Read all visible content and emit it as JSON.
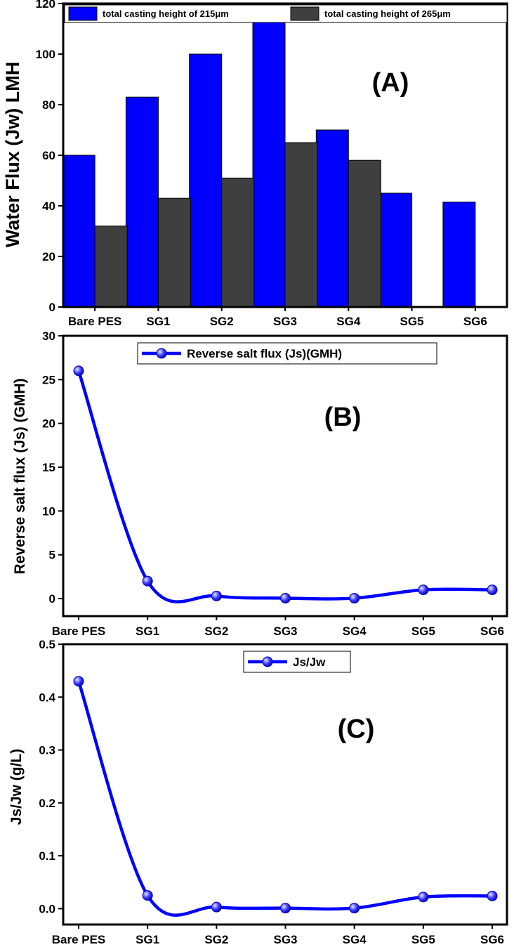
{
  "chart_data": [
    {
      "type": "bar",
      "panel_label": "(A)",
      "categories": [
        "Bare PES",
        "SG1",
        "SG2",
        "SG3",
        "SG4",
        "SG5",
        "SG6"
      ],
      "series": [
        {
          "name": "total casting height of 215μm",
          "color": "#0000ff",
          "values": [
            60,
            83,
            100,
            115,
            70,
            45,
            41.5
          ]
        },
        {
          "name": "total casting height of 265μm",
          "color": "#3f3f3f",
          "values": [
            32,
            43,
            51,
            65,
            58,
            null,
            null
          ]
        }
      ],
      "ylabel": "Water Flux (Jw) LMH",
      "ylim": [
        0,
        120
      ],
      "yticks": [
        0,
        20,
        40,
        60,
        80,
        100,
        120
      ],
      "legend": "top"
    },
    {
      "type": "line",
      "panel_label": "(B)",
      "categories": [
        "Bare PES",
        "SG1",
        "SG2",
        "SG3",
        "SG4",
        "SG5",
        "SG6"
      ],
      "series": [
        {
          "name": "Reverse salt flux (Js)(GMH)",
          "color": "#0000ff",
          "values": [
            26,
            2,
            0.3,
            0.05,
            0.05,
            1,
            1
          ]
        }
      ],
      "ylabel": "Reverse salt flux (Js) (GMH)",
      "ylim": [
        -2,
        30
      ],
      "yticks": [
        0,
        5,
        10,
        15,
        20,
        25,
        30
      ],
      "legend": "top"
    },
    {
      "type": "line",
      "panel_label": "(C)",
      "categories": [
        "Bare PES",
        "SG1",
        "SG2",
        "SG3",
        "SG4",
        "SG5",
        "SG6"
      ],
      "series": [
        {
          "name": "Js/Jw",
          "color": "#0000ff",
          "values": [
            0.43,
            0.025,
            0.003,
            0.001,
            0.001,
            0.022,
            0.024
          ]
        }
      ],
      "ylabel": "Js/Jw (g/L)",
      "ylim": [
        -0.03,
        0.5
      ],
      "yticks": [
        0.0,
        0.1,
        0.2,
        0.3,
        0.4,
        0.5
      ],
      "legend": "top"
    }
  ]
}
